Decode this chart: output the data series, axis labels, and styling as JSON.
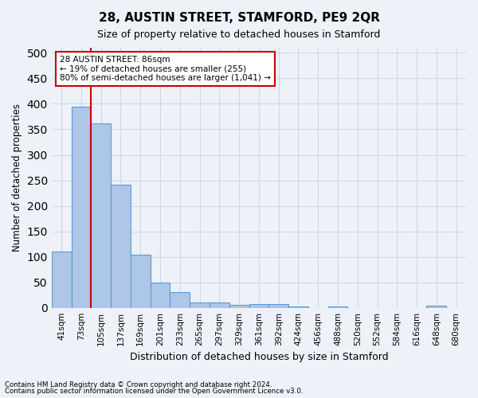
{
  "title": "28, AUSTIN STREET, STAMFORD, PE9 2QR",
  "subtitle": "Size of property relative to detached houses in Stamford",
  "xlabel": "Distribution of detached houses by size in Stamford",
  "ylabel": "Number of detached properties",
  "bar_values": [
    110,
    395,
    362,
    242,
    104,
    50,
    30,
    10,
    10,
    6,
    7,
    7,
    3,
    0,
    3,
    0,
    0,
    0,
    0,
    4,
    0
  ],
  "bar_labels": [
    "41sqm",
    "73sqm",
    "105sqm",
    "137sqm",
    "169sqm",
    "201sqm",
    "233sqm",
    "265sqm",
    "297sqm",
    "329sqm",
    "361sqm",
    "392sqm",
    "424sqm",
    "456sqm",
    "488sqm",
    "520sqm",
    "552sqm",
    "584sqm",
    "616sqm",
    "648sqm",
    "680sqm"
  ],
  "bar_color": "#aec6e8",
  "bar_edge_color": "#5b9bd5",
  "grid_color": "#d0d8e8",
  "vline_x": 1.5,
  "vline_color": "#cc0000",
  "annotation_line1": "28 AUSTIN STREET: 86sqm",
  "annotation_line2": "← 19% of detached houses are smaller (255)",
  "annotation_line3": "80% of semi-detached houses are larger (1,041) →",
  "annotation_box_color": "#cc0000",
  "ylim": [
    0,
    510
  ],
  "yticks": [
    0,
    50,
    100,
    150,
    200,
    250,
    300,
    350,
    400,
    450,
    500
  ],
  "footnote1": "Contains HM Land Registry data © Crown copyright and database right 2024.",
  "footnote2": "Contains public sector information licensed under the Open Government Licence v3.0.",
  "bg_color": "#eef2f8",
  "plot_bg_color": "#eef2f8"
}
